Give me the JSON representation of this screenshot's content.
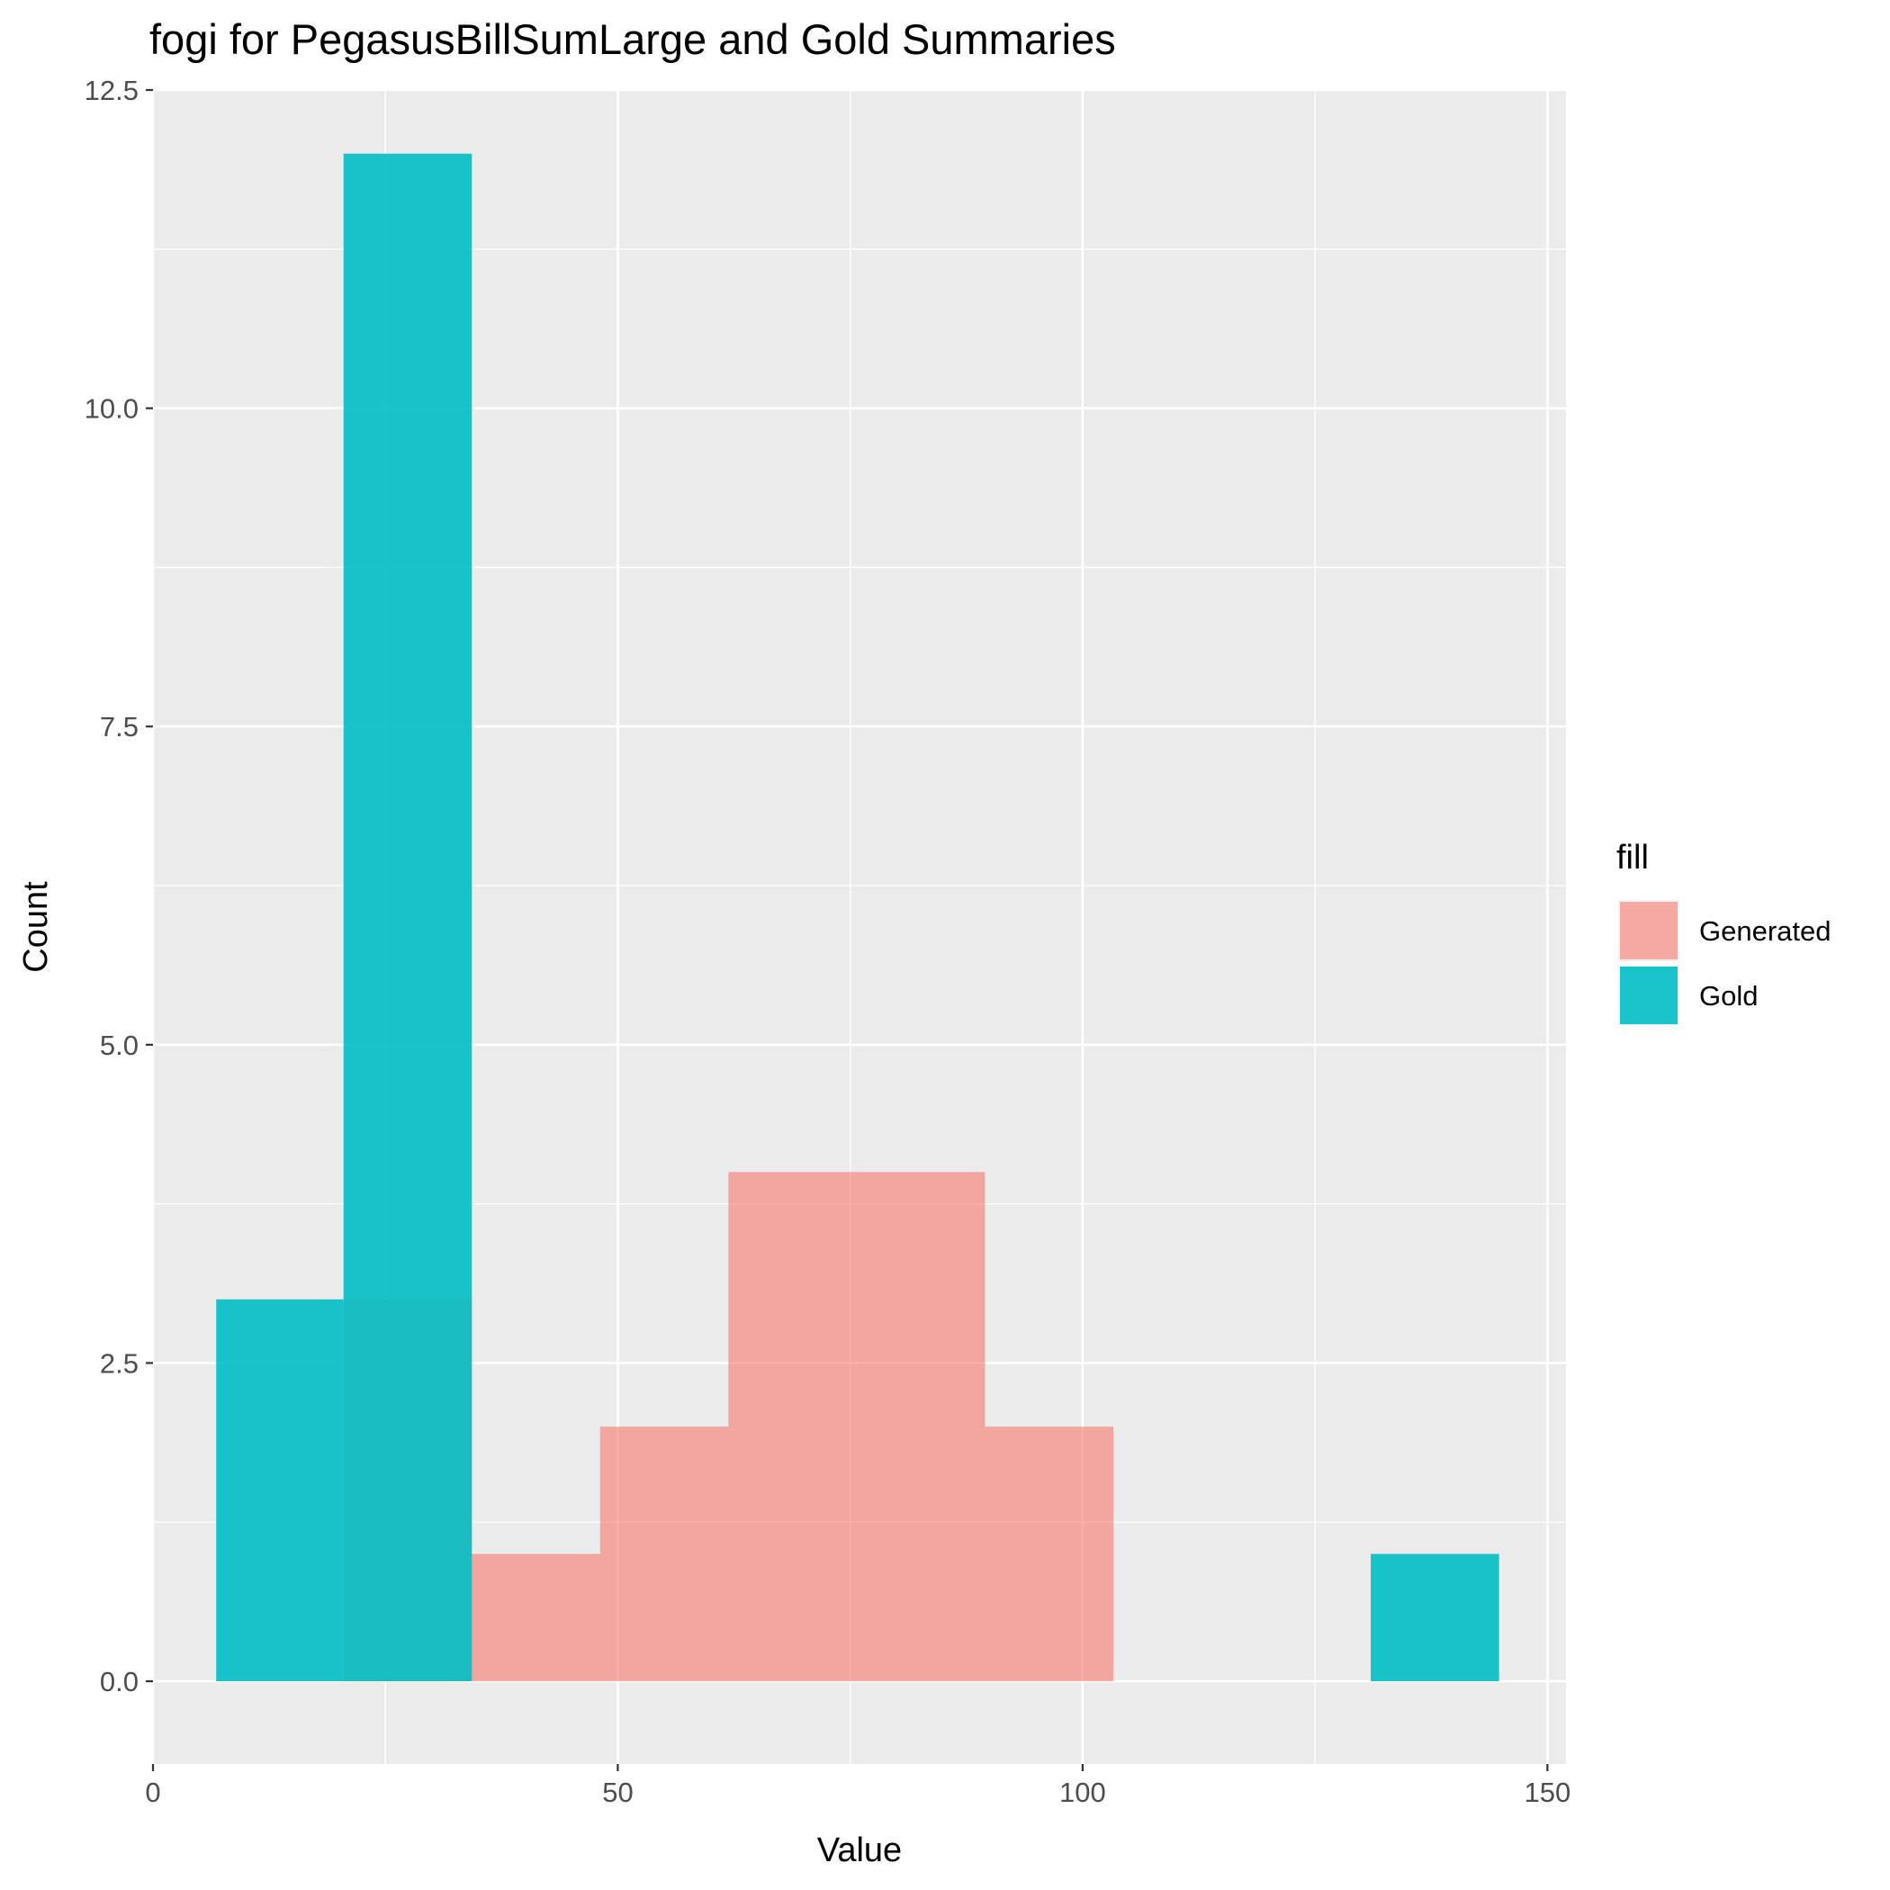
{
  "chart_data": {
    "type": "bar",
    "subtype": "histogram-overlay",
    "title": "fogi for PegasusBillSumLarge and Gold Summaries",
    "xlabel": "Value",
    "ylabel": "Count",
    "xlim": [
      0,
      152
    ],
    "ylim": [
      -0.65,
      12.5
    ],
    "x_ticks": [
      0,
      50,
      100,
      150
    ],
    "x_tick_labels": [
      "0",
      "50",
      "100",
      "150"
    ],
    "y_ticks": [
      0,
      2.5,
      5,
      7.5,
      10,
      12.5
    ],
    "y_tick_labels": [
      "0.0",
      "2.5",
      "5.0",
      "7.5",
      "10.0",
      "12.5"
    ],
    "grid": true,
    "legend": {
      "title": "fill",
      "position": "right",
      "entries": [
        "Generated",
        "Gold"
      ]
    },
    "series": [
      {
        "name": "Generated",
        "color": "#F8766D",
        "opacity": 0.6,
        "bins": [
          {
            "x0": 20.5,
            "x1": 34.3,
            "count": 3
          },
          {
            "x0": 34.3,
            "x1": 48.1,
            "count": 1
          },
          {
            "x0": 48.1,
            "x1": 61.9,
            "count": 2
          },
          {
            "x0": 61.9,
            "x1": 75.7,
            "count": 4
          },
          {
            "x0": 75.7,
            "x1": 89.5,
            "count": 4
          },
          {
            "x0": 89.5,
            "x1": 103.3,
            "count": 2
          }
        ]
      },
      {
        "name": "Gold",
        "color": "#00BFC4",
        "opacity": 0.9,
        "bins": [
          {
            "x0": 6.8,
            "x1": 20.5,
            "count": 3
          },
          {
            "x0": 20.5,
            "x1": 34.3,
            "count": 12
          },
          {
            "x0": 131.0,
            "x1": 144.8,
            "count": 1
          }
        ]
      }
    ]
  }
}
